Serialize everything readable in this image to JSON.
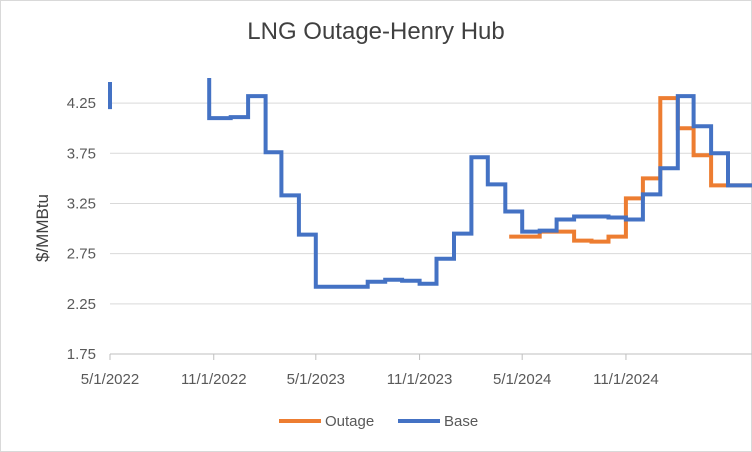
{
  "chart_data": {
    "type": "line",
    "title": "LNG Outage-Henry Hub",
    "xlabel": "",
    "ylabel": "$/MMBtu",
    "ylim": [
      1.75,
      4.5
    ],
    "y_ticks": [
      "1.75",
      "2.25",
      "2.75",
      "3.25",
      "3.75",
      "4.25"
    ],
    "x_range": [
      "2022-05-01",
      "2025-05-01"
    ],
    "x_ticks": [
      "5/1/2022",
      "11/1/2022",
      "5/1/2023",
      "11/1/2023",
      "5/1/2024",
      "11/1/2024"
    ],
    "grid": true,
    "legend_position": "bottom",
    "series": [
      {
        "name": "Outage",
        "color": "#ED7D31",
        "points": [
          [
            "2024-04-08",
            2.92
          ],
          [
            "2024-06-01",
            2.97
          ],
          [
            "2024-08-01",
            2.88
          ],
          [
            "2024-09-01",
            2.87
          ],
          [
            "2024-10-01",
            2.92
          ],
          [
            "2024-11-01",
            3.3
          ],
          [
            "2024-12-01",
            3.5
          ],
          [
            "2025-01-01",
            4.3
          ],
          [
            "2025-02-01",
            4.0
          ],
          [
            "2025-03-01",
            3.73
          ],
          [
            "2025-04-01",
            3.43
          ]
        ]
      },
      {
        "name": "Base",
        "color": "#4472C4",
        "points": [
          [
            "2022-05-01",
            4.19
          ],
          [
            "2022-05-01",
            4.46
          ],
          null,
          [
            "2022-10-24",
            4.5
          ],
          [
            "2022-10-24",
            4.1
          ],
          [
            "2022-11-01",
            4.1
          ],
          [
            "2022-12-01",
            4.11
          ],
          [
            "2023-01-01",
            4.32
          ],
          [
            "2023-02-01",
            3.76
          ],
          [
            "2023-03-01",
            3.33
          ],
          [
            "2023-04-01",
            2.94
          ],
          [
            "2023-05-01",
            2.42
          ],
          [
            "2023-08-01",
            2.47
          ],
          [
            "2023-09-01",
            2.49
          ],
          [
            "2023-10-01",
            2.48
          ],
          [
            "2023-11-01",
            2.45
          ],
          [
            "2023-12-01",
            2.7
          ],
          [
            "2024-01-01",
            2.95
          ],
          [
            "2024-02-01",
            3.71
          ],
          [
            "2024-03-01",
            3.44
          ],
          [
            "2024-04-01",
            3.17
          ],
          [
            "2024-05-01",
            2.97
          ],
          [
            "2024-06-01",
            2.98
          ],
          [
            "2024-07-01",
            3.09
          ],
          [
            "2024-08-01",
            3.12
          ],
          [
            "2024-10-01",
            3.11
          ],
          [
            "2024-11-01",
            3.09
          ],
          [
            "2024-12-01",
            3.34
          ],
          [
            "2025-01-01",
            3.6
          ],
          [
            "2025-02-01",
            4.32
          ],
          [
            "2025-03-01",
            4.02
          ],
          [
            "2025-04-01",
            3.75
          ],
          [
            "2025-05-01",
            3.43
          ]
        ]
      }
    ]
  }
}
